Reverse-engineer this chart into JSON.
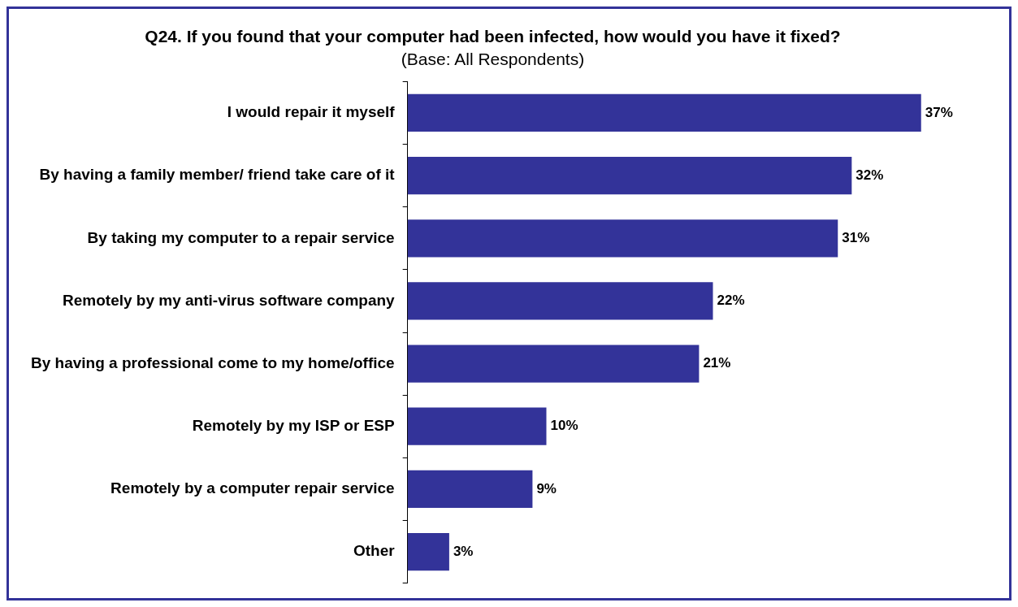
{
  "chart_data": {
    "type": "bar",
    "orientation": "horizontal",
    "title": "Q24. If you found that your computer had been infected, how would you have it fixed?",
    "subtitle": "(Base: All Respondents)",
    "categories": [
      "I would repair it myself",
      "By having a family member/ friend take care of it",
      "By taking my computer to a repair service",
      "Remotely by my anti-virus software company",
      "By having a professional come to my home/office",
      "Remotely by my ISP or ESP",
      "Remotely by a computer repair service",
      "Other"
    ],
    "values": [
      37,
      32,
      31,
      22,
      21,
      10,
      9,
      3
    ],
    "value_labels": [
      "37%",
      "32%",
      "31%",
      "22%",
      "21%",
      "10%",
      "9%",
      "3%"
    ],
    "color": "#333399",
    "legend": false
  }
}
